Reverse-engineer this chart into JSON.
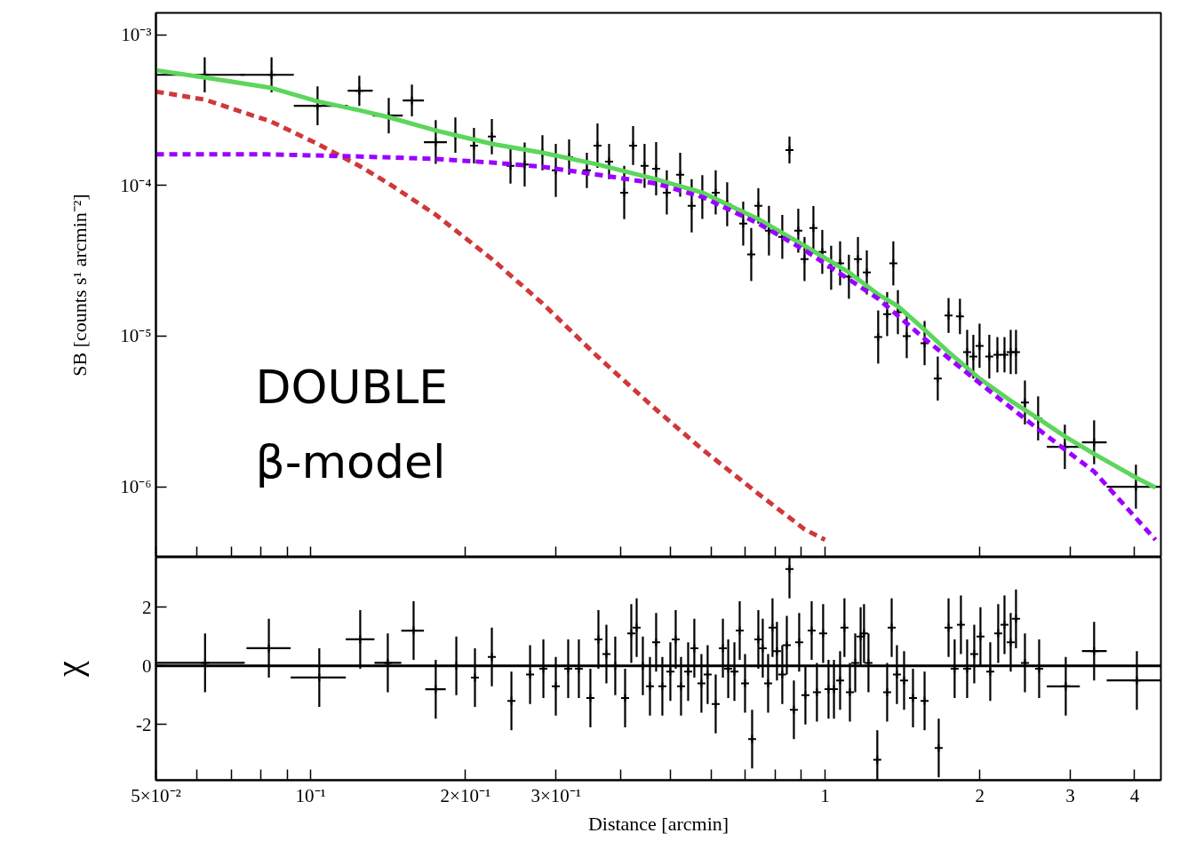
{
  "chart_data": [
    {
      "type": "scatter",
      "ylabel": "SB [counts s¹ arcmin⁻²]",
      "log": "xy",
      "marker": "cross",
      "tick_labels": "y",
      "xlim": [
        0.05,
        4.5
      ],
      "ylim": [
        3.4e-07,
        0.0014
      ],
      "xticks": [
        {
          "value": 0.05,
          "label": null
        },
        {
          "value": 0.06,
          "label": null
        },
        {
          "value": 0.07,
          "label": null
        },
        {
          "value": 0.08,
          "label": null
        },
        {
          "value": 0.09,
          "label": null
        },
        {
          "value": 0.1,
          "label": null
        },
        {
          "value": 0.2,
          "label": null
        },
        {
          "value": 0.3,
          "label": null
        },
        {
          "value": 0.4,
          "label": null
        },
        {
          "value": 0.5,
          "label": null
        },
        {
          "value": 0.6,
          "label": null
        },
        {
          "value": 0.7,
          "label": null
        },
        {
          "value": 0.8,
          "label": null
        },
        {
          "value": 0.9,
          "label": null
        },
        {
          "value": 1,
          "label": null
        },
        {
          "value": 2,
          "label": null
        },
        {
          "value": 3,
          "label": null
        },
        {
          "value": 4,
          "label": null
        }
      ],
      "yticks": [
        {
          "value": 0.001,
          "label": "10⁻³"
        },
        {
          "value": 0.0001,
          "label": "10⁻⁴"
        },
        {
          "value": 1e-05,
          "label": "10⁻⁵"
        },
        {
          "value": 1e-06,
          "label": "10⁻⁶"
        }
      ],
      "annotations": [
        "DOUBLE",
        "β-model"
      ],
      "series": [
        {
          "color": "#000000",
          "x": [
            0.0622,
            0.0839,
            0.1031,
            0.1243,
            0.1418,
            0.1573,
            0.175,
            0.1911,
            0.2077,
            0.225,
            0.2446,
            0.2606,
            0.2822,
            0.2996,
            0.318,
            0.3443,
            0.3611,
            0.3803,
            0.407,
            0.4235,
            0.4458,
            0.4695,
            0.4925,
            0.5229,
            0.5505,
            0.5774,
            0.613,
            0.6454,
            0.6934,
            0.7188,
            0.742,
            0.7781,
            0.826,
            0.853,
            0.8873,
            0.9124,
            0.9495,
            0.988,
            1.028,
            1.07,
            1.113,
            1.159,
            1.206,
            1.269,
            1.321,
            1.358,
            1.386,
            1.442,
            1.562,
            1.657,
            1.739,
            1.83,
            1.89,
            1.943,
            1.998,
            2.087,
            2.164,
            2.234,
            2.297,
            2.352,
            2.448,
            2.597,
            2.927,
            3.337,
            4.024
          ],
          "values": [
            0.000543,
            0.000543,
            0.000338,
            0.000426,
            0.000291,
            0.000367,
            0.000194,
            0.000216,
            0.000184,
            0.000211,
            0.000135,
            0.000138,
            0.000165,
            0.000126,
            0.000154,
            0.000126,
            0.000184,
            0.000144,
            8.97e-05,
            0.000184,
            0.000135,
            0.000129,
            8.97e-05,
            0.000118,
            7.32e-05,
            8.39e-05,
            8.97e-05,
            7.52e-05,
            5.59e-05,
            3.48e-05,
            7.32e-05,
            5.01e-05,
            4.56e-05,
            0.000172,
            5.01e-05,
            3.25e-05,
            5.22e-05,
            3.62e-05,
            2.84e-05,
            3.04e-05,
            2.48e-05,
            3.25e-05,
            2.65e-05,
            9.86e-06,
            1.4e-05,
            3.04e-05,
            1.44e-05,
            1e-05,
            8.97e-06,
            5.22e-06,
            1.37e-05,
            1.35e-05,
            7.83e-06,
            7.32e-06,
            8.62e-06,
            7.32e-06,
            7.52e-06,
            7.52e-06,
            7.83e-06,
            7.83e-06,
            3.62e-06,
            2.84e-06,
            1.84e-06,
            1.97e-06,
            1e-06
          ],
          "errors": [
            [
              0.000415,
              0.000711
            ],
            [
              0.000415,
              0.000711
            ],
            [
              0.000251,
              0.000455
            ],
            [
              0.000338,
              0.000536
            ],
            [
              0.000222,
              0.000381
            ],
            [
              0.000288,
              0.000468
            ],
            [
              0.000139,
              0.000272
            ],
            [
              0.000165,
              0.000283
            ],
            [
              0.00014,
              0.000241
            ],
            [
              0.000161,
              0.000276
            ],
            [
              0.000103,
              0.000177
            ],
            [
              9.86e-05,
              0.000193
            ],
            [
              0.000126,
              0.000216
            ],
            [
              8.4e-05,
              0.000189
            ],
            [
              0.000118,
              0.000202
            ],
            [
              9.62e-05,
              0.000165
            ],
            [
              0.000131,
              0.000258
            ],
            [
              0.00011,
              0.000189
            ],
            [
              5.98e-05,
              0.000135
            ],
            [
              0.000137,
              0.000248
            ],
            [
              9.64e-05,
              0.000189
            ],
            [
              8.6e-05,
              0.000194
            ],
            [
              6.41e-05,
              0.000126
            ],
            [
              8.43e-05,
              0.000165
            ],
            [
              4.88e-05,
              0.00011
            ],
            [
              5.99e-05,
              0.000117
            ],
            [
              6.41e-05,
              0.000126
            ],
            [
              5.37e-05,
              0.000105
            ],
            [
              3.99e-05,
              7.83e-05
            ],
            [
              2.32e-05,
              5.22e-05
            ],
            [
              5.59e-05,
              9.59e-05
            ],
            [
              3.43e-05,
              7.32e-05
            ],
            [
              3.26e-05,
              6.38e-05
            ],
            [
              0.00014,
              0.000211
            ],
            [
              3.58e-05,
              7.01e-05
            ],
            [
              2.32e-05,
              4.55e-05
            ],
            [
              3.73e-05,
              7.31e-05
            ],
            [
              2.59e-05,
              5.07e-05
            ],
            [
              2.03e-05,
              3.98e-05
            ],
            [
              2.17e-05,
              4.26e-05
            ],
            [
              1.77e-05,
              3.47e-05
            ],
            [
              2.32e-05,
              4.55e-05
            ],
            [
              1.89e-05,
              3.71e-05
            ],
            [
              6.57e-06,
              1.48e-05
            ],
            [
              1e-05,
              1.96e-05
            ],
            [
              2.17e-05,
              4.26e-05
            ],
            [
              1.03e-05,
              2.02e-05
            ],
            [
              7.14e-06,
              1.4e-05
            ],
            [
              6.41e-06,
              1.26e-05
            ],
            [
              3.73e-06,
              7.31e-06
            ],
            [
              1.05e-05,
              1.79e-05
            ],
            [
              1.03e-05,
              1.77e-05
            ],
            [
              5.59e-06,
              1.1e-05
            ],
            [
              5.23e-06,
              1.02e-05
            ],
            [
              6.16e-06,
              1.21e-05
            ],
            [
              5.23e-06,
              1.02e-05
            ],
            [
              5.74e-06,
              9.85e-06
            ],
            [
              5.74e-06,
              9.85e-06
            ],
            [
              5.59e-06,
              1.1e-05
            ],
            [
              5.59e-06,
              1.1e-05
            ],
            [
              2.59e-06,
              5.07e-06
            ],
            [
              2.03e-06,
              3.98e-06
            ],
            [
              1.31e-06,
              2.58e-06
            ],
            [
              1.41e-06,
              2.76e-06
            ],
            [
              7.14e-07,
              1.4e-06
            ]
          ],
          "xerrors": [
            [
              0.05,
              0.0744
            ],
            [
              0.073,
              0.0927
            ],
            [
              0.0927,
              0.118
            ],
            [
              0.118,
              0.132
            ],
            [
              0.132,
              0.151
            ],
            [
              0.151,
              0.166
            ],
            [
              0.166,
              0.184
            ],
            null,
            null,
            null,
            null,
            null,
            null,
            null,
            null,
            null,
            null,
            null,
            null,
            null,
            null,
            null,
            null,
            null,
            null,
            null,
            null,
            null,
            null,
            null,
            null,
            null,
            null,
            null,
            null,
            null,
            null,
            null,
            null,
            null,
            null,
            null,
            null,
            null,
            null,
            null,
            null,
            null,
            null,
            null,
            null,
            null,
            null,
            null,
            null,
            null,
            null,
            null,
            null,
            null,
            null,
            null,
            [
              2.7,
              3.13
            ],
            [
              3.16,
              3.53
            ],
            [
              3.53,
              4.5
            ]
          ]
        },
        {
          "type": "line",
          "color": "#5cd65c",
          "line_style": "solid",
          "marker": "none",
          "x": [
            0.05,
            0.0622,
            0.0839,
            0.1031,
            0.1243,
            0.1418,
            0.175,
            0.225,
            0.2822,
            0.3611,
            0.4695,
            0.5774,
            0.742,
            0.9124,
            1.113,
            1.269,
            1.386,
            1.562,
            1.739,
            1.998,
            2.297,
            2.597,
            2.927,
            3.337,
            4.024,
            4.392
          ],
          "values": [
            0.000582,
            0.000522,
            0.000444,
            0.000362,
            0.000316,
            0.000284,
            0.000232,
            0.000189,
            0.000165,
            0.000138,
            0.00011,
            8.97e-05,
            5.98e-05,
            3.98e-05,
            2.65e-05,
            1.89e-05,
            1.58e-05,
            1.1e-05,
            7.83e-06,
            5.22e-06,
            3.72e-06,
            2.84e-06,
            2.16e-06,
            1.65e-06,
            1.15e-06,
            9.86e-07
          ]
        },
        {
          "type": "line",
          "color": "#d0383a",
          "line_style": "dashed",
          "marker": "none",
          "x": [
            0.05,
            0.0622,
            0.0839,
            0.1031,
            0.1243,
            0.1418,
            0.175,
            0.225,
            0.2822,
            0.3611,
            0.4695,
            0.5774,
            0.742,
            0.9124,
            1.0
          ],
          "values": [
            0.00042,
            0.000372,
            0.000265,
            0.000189,
            0.000135,
            0.000103,
            6.4e-05,
            3.25e-05,
            1.65e-05,
            7.32e-06,
            3.25e-06,
            1.77e-06,
            8.97e-07,
            5.22e-07,
            4.44e-07
          ]
        },
        {
          "type": "line",
          "color": "#9b00ff",
          "line_style": "dashed",
          "marker": "none",
          "x": [
            0.05,
            0.0822,
            0.1224,
            0.175,
            0.225,
            0.2822,
            0.3611,
            0.4695,
            0.5774,
            0.742,
            0.9124,
            1.113,
            1.269,
            1.562,
            1.998,
            2.597,
            3.337,
            4.392
          ],
          "values": [
            0.000161,
            0.000161,
            0.000156,
            0.00015,
            0.000142,
            0.000133,
            0.000118,
            0.000103,
            8.39e-05,
            5.59e-05,
            3.72e-05,
            2.38e-05,
            1.77e-05,
            9.6e-06,
            4.88e-06,
            2.41e-06,
            1.26e-06,
            4.44e-07
          ]
        }
      ]
    },
    {
      "type": "scatter",
      "xlabel": "Distance [arcmin]",
      "ylabel": "χ",
      "log": "x",
      "marker": "cross",
      "xlim": [
        0.05,
        4.5
      ],
      "ylim": [
        -3.9,
        3.7
      ],
      "xticks": [
        {
          "value": 0.05,
          "label": "5×10⁻²"
        },
        {
          "value": 0.06,
          "label": null
        },
        {
          "value": 0.07,
          "label": null
        },
        {
          "value": 0.08,
          "label": null
        },
        {
          "value": 0.09,
          "label": null
        },
        {
          "value": 0.1,
          "label": "10⁻¹"
        },
        {
          "value": 0.2,
          "label": "2×10⁻¹"
        },
        {
          "value": 0.3,
          "label": "3×10⁻¹"
        },
        {
          "value": 0.4,
          "label": null
        },
        {
          "value": 0.5,
          "label": null
        },
        {
          "value": 0.6,
          "label": null
        },
        {
          "value": 0.7,
          "label": null
        },
        {
          "value": 0.8,
          "label": null
        },
        {
          "value": 0.9,
          "label": null
        },
        1,
        2,
        3,
        4
      ],
      "yticks": [
        -2,
        0,
        2
      ],
      "ref_lines": [
        {
          "axis": "y",
          "value": 0,
          "color": "#000000"
        }
      ],
      "series": [
        {
          "color": "#000000",
          "x": [
            0.0623,
            0.0829,
            0.1039,
            0.1248,
            0.1412,
            0.1585,
            0.175,
            0.1919,
            0.2086,
            0.225,
            0.2456,
            0.267,
            0.2834,
            0.2996,
            0.3167,
            0.3322,
            0.3498,
            0.3626,
            0.3758,
            0.391,
            0.4086,
            0.4201,
            0.4303,
            0.4424,
            0.4567,
            0.4695,
            0.4828,
            0.5004,
            0.5125,
            0.5249,
            0.5419,
            0.5571,
            0.5751,
            0.5913,
            0.613,
            0.6331,
            0.6484,
            0.6666,
            0.6826,
            0.6991,
            0.7216,
            0.742,
            0.7568,
            0.7752,
            0.7906,
            0.8065,
            0.826,
            0.8429,
            0.853,
            0.87,
            0.8909,
            0.9161,
            0.9421,
            0.9646,
            0.9918,
            1.016,
            1.041,
            1.07,
            1.091,
            1.118,
            1.145,
            1.173,
            1.191,
            1.215,
            1.264,
            1.321,
            1.348,
            1.38,
            1.425,
            1.483,
            1.562,
            1.664,
            1.739,
            1.787,
            1.838,
            1.89,
            1.951,
            2.006,
            2.096,
            2.172,
            2.234,
            2.297,
            2.352,
            2.448,
            2.609,
            2.939,
            3.337,
            4.041
          ],
          "values": [
            0.1,
            0.6,
            -0.4,
            0.9,
            0.1,
            1.2,
            -0.8,
            0.0,
            -0.4,
            0.3,
            -1.2,
            -0.3,
            -0.1,
            -0.7,
            -0.1,
            -0.1,
            -1.1,
            0.9,
            0.4,
            0.0,
            -1.1,
            1.1,
            1.3,
            0.0,
            -0.7,
            0.8,
            -0.7,
            -0.2,
            0.9,
            -0.7,
            -0.2,
            0.6,
            -0.6,
            -0.3,
            -1.3,
            0.6,
            -0.1,
            -0.2,
            1.2,
            -0.6,
            -2.5,
            0.9,
            0.6,
            -0.6,
            1.3,
            0.5,
            -0.3,
            0.7,
            3.3,
            -1.5,
            0.8,
            -1.0,
            1.2,
            -0.9,
            1.1,
            -0.8,
            -0.8,
            -0.5,
            1.3,
            -0.9,
            0.1,
            1.0,
            1.1,
            0.1,
            -3.2,
            -0.9,
            1.3,
            -0.3,
            -0.5,
            -1.1,
            -1.2,
            -2.8,
            1.3,
            -0.1,
            1.4,
            -0.1,
            0.4,
            1.0,
            -0.2,
            1.1,
            1.4,
            0.8,
            1.6,
            0.1,
            -0.1,
            -0.7,
            0.5,
            -0.5
          ],
          "errors": [
            1,
            1,
            1,
            1,
            1,
            1,
            1,
            1,
            1,
            1,
            1,
            1,
            1,
            1,
            1,
            1,
            1,
            1,
            1,
            1,
            1,
            1,
            1,
            1,
            1,
            1,
            1,
            1,
            1,
            1,
            1,
            1,
            1,
            1,
            1,
            1,
            1,
            1,
            1,
            1,
            1,
            1,
            1,
            1,
            1,
            1,
            1,
            1,
            [
              2.3,
              3.7
            ],
            1,
            1,
            1,
            1,
            1,
            1,
            1,
            1,
            1,
            1,
            1,
            1,
            1,
            1,
            1,
            [
              -3.9,
              -2.2
            ],
            1,
            1,
            1,
            1,
            1,
            1,
            1,
            1,
            1,
            1,
            1,
            1,
            1,
            1,
            1,
            1,
            1,
            1,
            1,
            1,
            1,
            1,
            1
          ],
          "xerrors": [
            [
              0.05,
              0.0744
            ],
            [
              0.075,
              0.0914
            ],
            [
              0.0914,
              0.117
            ],
            [
              0.117,
              0.133
            ],
            [
              0.133,
              0.15
            ],
            [
              0.15,
              0.166
            ],
            [
              0.167,
              0.183
            ],
            null,
            null,
            null,
            null,
            null,
            null,
            null,
            null,
            null,
            null,
            null,
            null,
            null,
            null,
            null,
            null,
            null,
            null,
            null,
            null,
            null,
            null,
            null,
            null,
            null,
            null,
            null,
            null,
            null,
            null,
            null,
            null,
            null,
            null,
            null,
            null,
            null,
            null,
            null,
            null,
            null,
            null,
            null,
            null,
            null,
            null,
            null,
            null,
            null,
            null,
            null,
            null,
            null,
            null,
            null,
            null,
            null,
            null,
            null,
            null,
            null,
            null,
            null,
            null,
            null,
            null,
            null,
            null,
            null,
            null,
            null,
            null,
            null,
            null,
            null,
            null,
            null,
            null,
            [
              2.7,
              3.13
            ],
            [
              3.16,
              3.53
            ],
            [
              3.53,
              4.5
            ]
          ]
        }
      ]
    }
  ]
}
